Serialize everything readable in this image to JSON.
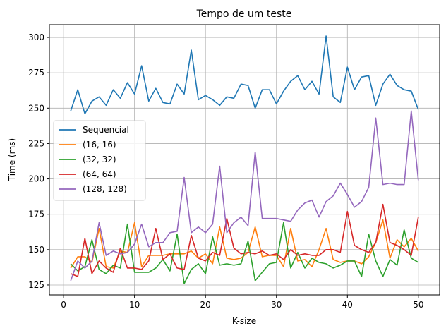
{
  "chart_data": {
    "type": "line",
    "title": "Tempo de um teste",
    "xlabel": "K-size",
    "ylabel": "Time (ms)",
    "xlim": [
      -2,
      53
    ],
    "ylim": [
      118,
      309
    ],
    "xticks": [
      0,
      10,
      20,
      30,
      40,
      50
    ],
    "yticks": [
      125,
      150,
      175,
      200,
      225,
      250,
      275,
      300
    ],
    "grid": true,
    "legend_position": "center-left",
    "x": [
      1,
      2,
      3,
      4,
      5,
      6,
      7,
      8,
      9,
      10,
      11,
      12,
      13,
      14,
      15,
      16,
      17,
      18,
      19,
      20,
      21,
      22,
      23,
      24,
      25,
      26,
      27,
      28,
      29,
      30,
      31,
      32,
      33,
      34,
      35,
      36,
      37,
      38,
      39,
      40,
      41,
      42,
      43,
      44,
      45,
      46,
      47,
      48,
      49,
      50
    ],
    "series": [
      {
        "name": "Sequencial",
        "color": "#1f77b4",
        "values": [
          248,
          263,
          246,
          255,
          258,
          252,
          263,
          257,
          268,
          260,
          280,
          255,
          264,
          254,
          253,
          267,
          260,
          291,
          256,
          259,
          256,
          252,
          258,
          257,
          267,
          266,
          250,
          263,
          263,
          253,
          262,
          269,
          273,
          263,
          269,
          260,
          301,
          258,
          254,
          279,
          263,
          272,
          273,
          252,
          267,
          274,
          266,
          263,
          262,
          249
        ]
      },
      {
        "name": "(16, 16)",
        "color": "#ff7f0e",
        "values": [
          137,
          145,
          145,
          141,
          165,
          138,
          137,
          149,
          148,
          169,
          138,
          146,
          146,
          146,
          147,
          147,
          147,
          149,
          144,
          147,
          140,
          166,
          144,
          143,
          144,
          148,
          166,
          145,
          146,
          146,
          138,
          165,
          142,
          143,
          138,
          150,
          165,
          143,
          141,
          142,
          142,
          140,
          145,
          155,
          171,
          144,
          157,
          152,
          158,
          149
        ]
      },
      {
        "name": "(32, 32)",
        "color": "#2ca02c",
        "values": [
          140,
          135,
          138,
          157,
          136,
          133,
          139,
          137,
          168,
          134,
          134,
          134,
          137,
          143,
          135,
          161,
          126,
          136,
          140,
          133,
          159,
          139,
          140,
          139,
          140,
          156,
          128,
          134,
          140,
          141,
          169,
          137,
          148,
          137,
          144,
          141,
          140,
          137,
          139,
          142,
          142,
          131,
          161,
          142,
          131,
          143,
          139,
          164,
          144,
          141
        ]
      },
      {
        "name": "(64, 64)",
        "color": "#d62728",
        "values": [
          133,
          131,
          158,
          133,
          142,
          137,
          134,
          151,
          137,
          137,
          136,
          142,
          165,
          143,
          147,
          137,
          136,
          160,
          144,
          142,
          148,
          146,
          172,
          151,
          147,
          148,
          147,
          149,
          146,
          147,
          143,
          150,
          146,
          147,
          146,
          146,
          150,
          150,
          148,
          177,
          153,
          150,
          148,
          155,
          182,
          155,
          153,
          150,
          146,
          173
        ]
      },
      {
        "name": "(128, 128)",
        "color": "#9467bd",
        "values": [
          128,
          142,
          137,
          142,
          169,
          146,
          149,
          147,
          148,
          154,
          168,
          152,
          155,
          155,
          162,
          163,
          201,
          162,
          166,
          162,
          168,
          209,
          162,
          169,
          173,
          167,
          219,
          172,
          172,
          172,
          171,
          170,
          178,
          183,
          185,
          173,
          184,
          188,
          197,
          189,
          180,
          184,
          194,
          243,
          196,
          197,
          196,
          196,
          248,
          199
        ]
      }
    ]
  }
}
